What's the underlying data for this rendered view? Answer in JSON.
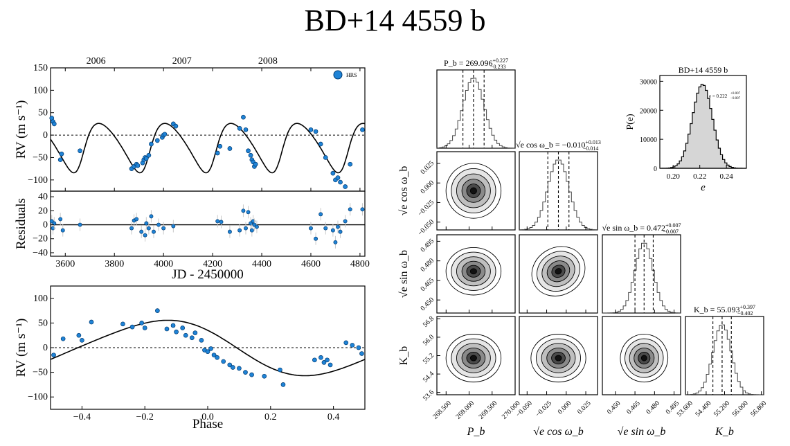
{
  "title": "BD+14 4559 b",
  "colors": {
    "data": "#1f83d6",
    "line": "#000000",
    "fill": "#d6d6d6"
  },
  "chart_data": [
    {
      "type": "scatter",
      "panel": "rv-time",
      "top_labels": [
        "2006",
        "2007",
        "2008"
      ],
      "top_label_x": [
        3725,
        4075,
        4425
      ],
      "xlim": [
        3540,
        4820
      ],
      "ylim": [
        -125,
        150
      ],
      "yticks": [
        "150",
        "100",
        "50",
        "0",
        "−50",
        "−100"
      ],
      "ytick_values": [
        150,
        100,
        50,
        0,
        -50,
        -100
      ],
      "ylabel": "RV (m s⁻¹)",
      "legend": "HRS",
      "legend_position": "top-right",
      "x": [
        3545,
        3550,
        3555,
        3580,
        3585,
        3660,
        3870,
        3880,
        3890,
        3895,
        3915,
        3920,
        3925,
        3930,
        3940,
        3950,
        3975,
        3995,
        4000,
        4005,
        4040,
        4050,
        4220,
        4230,
        4270,
        4310,
        4325,
        4335,
        4345,
        4355,
        4360,
        4365,
        4370,
        4375,
        4600,
        4620,
        4640,
        4660,
        4690,
        4700,
        4710,
        4720,
        4740,
        4760,
        4810
      ],
      "y": [
        38,
        30,
        25,
        -55,
        -42,
        -35,
        -75,
        -70,
        -65,
        -68,
        -62,
        -55,
        -50,
        -52,
        -45,
        -20,
        -12,
        -5,
        0,
        2,
        25,
        20,
        -40,
        -25,
        -30,
        15,
        40,
        12,
        -35,
        -45,
        -55,
        -60,
        -70,
        -65,
        12,
        8,
        -20,
        -50,
        -85,
        -100,
        -95,
        -105,
        -115,
        -65,
        12
      ],
      "model_period": 269.096,
      "model_K": 55.093,
      "model_e": 0.222
    },
    {
      "type": "scatter",
      "panel": "residuals",
      "xlim": [
        3540,
        4820
      ],
      "ylim": [
        -45,
        48
      ],
      "yticks": [
        "40",
        "20",
        "0",
        "−20",
        "−40"
      ],
      "ytick_values": [
        40,
        20,
        0,
        -20,
        -40
      ],
      "xticks": [
        "3600",
        "3800",
        "4000",
        "4200",
        "4400",
        "4600",
        "4800"
      ],
      "xtick_values": [
        3600,
        3800,
        4000,
        4200,
        4400,
        4600,
        4800
      ],
      "ylabel": "Residuals",
      "xlabel": "JD - 2450000",
      "x": [
        3545,
        3550,
        3555,
        3580,
        3590,
        3660,
        3870,
        3880,
        3890,
        3910,
        3925,
        3930,
        3940,
        3950,
        3960,
        3980,
        4000,
        4040,
        4220,
        4235,
        4270,
        4310,
        4325,
        4335,
        4345,
        4355,
        4360,
        4365,
        4370,
        4380,
        4600,
        4620,
        4640,
        4660,
        4690,
        4700,
        4710,
        4720,
        4740,
        4760,
        4810
      ],
      "y": [
        5,
        -5,
        2,
        8,
        -8,
        0,
        -5,
        6,
        8,
        -10,
        -15,
        2,
        -5,
        12,
        -10,
        0,
        -5,
        -2,
        5,
        4,
        -10,
        -8,
        20,
        -5,
        18,
        2,
        -8,
        5,
        0,
        -3,
        -5,
        -20,
        15,
        -5,
        -8,
        -25,
        -3,
        -10,
        5,
        22,
        22
      ]
    },
    {
      "type": "scatter",
      "panel": "rv-phase",
      "xlim": [
        -0.5,
        0.5
      ],
      "ylim": [
        -125,
        125
      ],
      "yticks": [
        "100",
        "50",
        "0",
        "−50",
        "−100"
      ],
      "ytick_values": [
        100,
        50,
        0,
        -50,
        -100
      ],
      "xticks": [
        "−0.4",
        "−0.2",
        "0.0",
        "0.2",
        "0.4"
      ],
      "xtick_values": [
        -0.4,
        -0.2,
        0.0,
        0.2,
        0.4
      ],
      "ylabel": "RV (m s⁻¹)",
      "xlabel": "Phase",
      "x": [
        -0.49,
        -0.46,
        -0.41,
        -0.4,
        -0.37,
        -0.27,
        -0.24,
        -0.21,
        -0.2,
        -0.16,
        -0.13,
        -0.11,
        -0.1,
        -0.08,
        -0.07,
        -0.05,
        -0.04,
        -0.02,
        -0.01,
        0.0,
        0.01,
        0.02,
        0.03,
        0.05,
        0.07,
        0.08,
        0.1,
        0.12,
        0.14,
        0.18,
        0.23,
        0.24,
        0.34,
        0.36,
        0.37,
        0.38,
        0.39,
        0.44,
        0.46,
        0.48,
        0.49
      ],
      "y": [
        -15,
        18,
        25,
        15,
        52,
        48,
        42,
        50,
        40,
        75,
        38,
        45,
        32,
        40,
        25,
        20,
        30,
        15,
        -5,
        -8,
        -2,
        -15,
        -20,
        -28,
        -35,
        -40,
        -42,
        -50,
        -55,
        -58,
        -45,
        -75,
        -25,
        -20,
        -30,
        -25,
        -35,
        10,
        5,
        0,
        -12
      ]
    },
    {
      "type": "corner",
      "panel": "posterior",
      "params": [
        "Pb",
        "sqrt_e_cos_w",
        "sqrt_e_sin_w",
        "Kb"
      ],
      "axis_labels": [
        "P_b",
        "√e cos ω_b",
        "√e sin ω_b",
        "K_b"
      ],
      "diag_titles": [
        {
          "text": "P_b = 269.096",
          "up": "+0.227",
          "down": "−0.233"
        },
        {
          "text": "√e cos ω_b = −0.010",
          "up": "+0.013",
          "down": "−0.014"
        },
        {
          "text": "√e sin ω_b = 0.472",
          "up": "+0.007",
          "down": "−0.007"
        },
        {
          "text": "K_b = 55.093",
          "up": "+0.397",
          "down": "−0.402"
        }
      ],
      "medians": [
        269.096,
        -0.01,
        0.472,
        55.093
      ],
      "sigmas": [
        0.23,
        0.0135,
        0.007,
        0.4
      ],
      "ranges": [
        [
          268.3,
          270.0
        ],
        [
          -0.06,
          0.04
        ],
        [
          0.44,
          0.5
        ],
        [
          53.5,
          56.9
        ]
      ],
      "xticks": [
        [
          "268.500",
          "269.000",
          "269.500",
          "270.000"
        ],
        [
          "−0.050",
          "−0.025",
          "0.000",
          "0.025"
        ],
        [
          "0.450",
          "0.465",
          "0.480",
          "0.495"
        ],
        [
          "53.600",
          "54.400",
          "55.200",
          "56.000",
          "56.800"
        ]
      ],
      "xtick_values": [
        [
          268.5,
          269.0,
          269.5,
          270.0
        ],
        [
          -0.05,
          -0.025,
          0.0,
          0.025
        ],
        [
          0.45,
          0.465,
          0.48,
          0.495
        ],
        [
          53.6,
          54.4,
          55.2,
          56.0,
          56.8
        ]
      ],
      "yticks": [
        [],
        [
          "0.025",
          "0.000",
          "−0.025",
          "−0.050"
        ],
        [
          "0.495",
          "0.480",
          "0.465",
          "0.450"
        ],
        [
          "56.8",
          "56.0",
          "55.2",
          "54.4",
          "53.6"
        ]
      ],
      "ytick_values": [
        [],
        [
          0.025,
          0.0,
          -0.025,
          -0.05
        ],
        [
          0.495,
          0.48,
          0.465,
          0.45
        ],
        [
          56.8,
          56.0,
          55.2,
          54.4,
          53.6
        ]
      ]
    },
    {
      "type": "histogram",
      "panel": "eccentricity",
      "title": "BD+14 4559 b",
      "annotation": "e = 0.222",
      "annotation_up": "+0.007",
      "annotation_down": "−0.007",
      "median": 0.222,
      "sigma": 0.0075,
      "xlim": [
        0.19,
        0.255
      ],
      "ylim": [
        0,
        32000
      ],
      "xticks": [
        "0.20",
        "0.22",
        "0.24"
      ],
      "xtick_values": [
        0.2,
        0.22,
        0.24
      ],
      "yticks": [
        "30000",
        "20000",
        "10000",
        "0"
      ],
      "ytick_values": [
        30000,
        20000,
        10000,
        0
      ],
      "xlabel": "e",
      "ylabel": "P(e)",
      "peak": 29000
    }
  ]
}
